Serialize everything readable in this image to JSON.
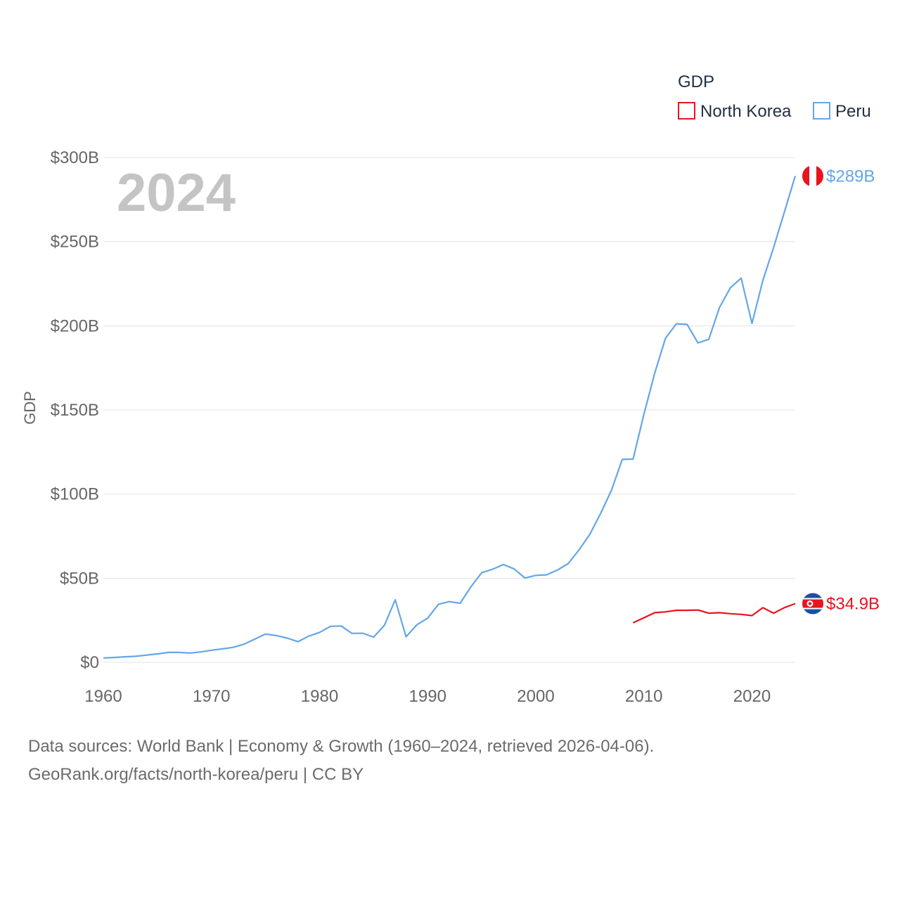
{
  "chart_data": {
    "type": "line",
    "title": "GDP",
    "ylabel": "GDP",
    "xlabel": "",
    "xlim": [
      1960,
      2024
    ],
    "ylim": [
      0,
      300
    ],
    "y_unit": "billion USD",
    "x_ticks": [
      1960,
      1970,
      1980,
      1990,
      2000,
      2010,
      2020
    ],
    "y_ticks": [
      0,
      50,
      100,
      150,
      200,
      250,
      300
    ],
    "y_tick_labels": [
      "$0",
      "$50B",
      "$100B",
      "$150B",
      "$200B",
      "$250B",
      "$300B"
    ],
    "highlight_year": "2024",
    "legend_title": "GDP",
    "series": [
      {
        "name": "North Korea",
        "color": "#e8141e",
        "end_label": "$34.9B",
        "flag_icon": "north-korea-flag-icon",
        "x": [
          2009,
          2010,
          2011,
          2012,
          2013,
          2014,
          2015,
          2016,
          2017,
          2018,
          2019,
          2020,
          2021,
          2022,
          2023,
          2024
        ],
        "y": [
          23.5,
          26.5,
          29.5,
          30.0,
          30.9,
          30.9,
          31.1,
          29.2,
          29.5,
          28.9,
          28.5,
          27.8,
          32.5,
          29.2,
          32.5,
          34.9
        ]
      },
      {
        "name": "Peru",
        "color": "#64a6e8",
        "end_label": "$289B",
        "flag_icon": "peru-flag-icon",
        "x": [
          1960,
          1961,
          1962,
          1963,
          1964,
          1965,
          1966,
          1967,
          1968,
          1969,
          1970,
          1971,
          1972,
          1973,
          1974,
          1975,
          1976,
          1977,
          1978,
          1979,
          1980,
          1981,
          1982,
          1983,
          1984,
          1985,
          1986,
          1987,
          1988,
          1989,
          1990,
          1991,
          1992,
          1993,
          1994,
          1995,
          1996,
          1997,
          1998,
          1999,
          2000,
          2001,
          2002,
          2003,
          2004,
          2005,
          2006,
          2007,
          2008,
          2009,
          2010,
          2011,
          2012,
          2013,
          2014,
          2015,
          2016,
          2017,
          2018,
          2019,
          2020,
          2021,
          2022,
          2023,
          2024
        ],
        "y": [
          2.6,
          2.9,
          3.3,
          3.6,
          4.3,
          5.0,
          5.9,
          5.9,
          5.5,
          6.2,
          7.2,
          8.0,
          8.9,
          10.8,
          13.8,
          16.8,
          15.9,
          14.4,
          12.3,
          15.6,
          17.8,
          21.4,
          21.6,
          17.2,
          17.3,
          15.0,
          22.0,
          37.2,
          15.2,
          22.3,
          26.3,
          34.5,
          36.1,
          35.1,
          44.9,
          53.3,
          55.3,
          58.1,
          55.5,
          50.1,
          51.7,
          52.0,
          54.8,
          58.7,
          66.8,
          76.1,
          88.6,
          102.2,
          120.6,
          120.8,
          147.5,
          171.8,
          192.6,
          201.2,
          200.8,
          189.8,
          191.9,
          211.0,
          222.6,
          228.3,
          201.4,
          226.9,
          246.6,
          267.6,
          289.0
        ]
      }
    ]
  },
  "footer": {
    "line1": "Data sources: World Bank | Economy & Growth (1960–2024, retrieved 2026-04-06).",
    "line2": "GeoRank.org/facts/north-korea/peru | CC BY"
  }
}
